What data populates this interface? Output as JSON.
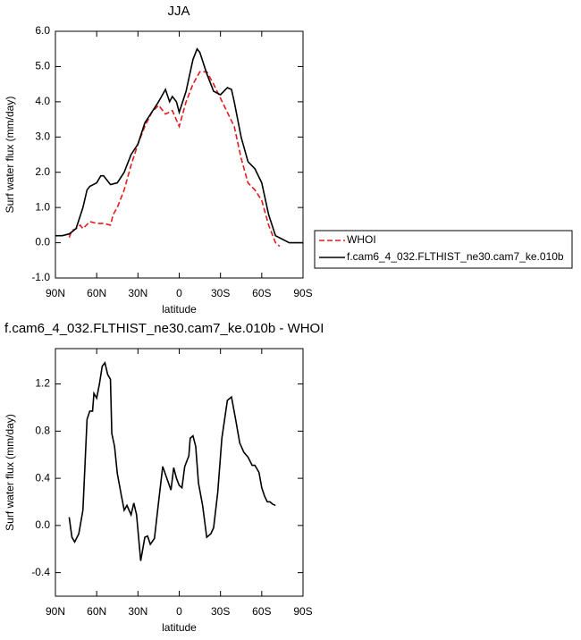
{
  "chart_data": [
    {
      "type": "line",
      "title": "JJA",
      "xlabel": "latitude",
      "ylabel": "Surf water flux (mm/day)",
      "xlim": [
        90,
        -90
      ],
      "xticks": [
        {
          "value": 90,
          "label": "90N"
        },
        {
          "value": 60,
          "label": "60N"
        },
        {
          "value": 30,
          "label": "30N"
        },
        0,
        {
          "value": -30,
          "label": "30S"
        },
        {
          "value": -60,
          "label": "60S"
        },
        {
          "value": -90,
          "label": "90S"
        }
      ],
      "ylim": [
        -1,
        6
      ],
      "yticks": [
        {
          "value": -1,
          "label": "-1.0"
        },
        {
          "value": 0,
          "label": "0.0"
        },
        {
          "value": 1,
          "label": "1.0"
        },
        {
          "value": 2,
          "label": "2.0"
        },
        {
          "value": 3,
          "label": "3.0"
        },
        {
          "value": 4,
          "label": "4.0"
        },
        {
          "value": 5,
          "label": "5.0"
        },
        {
          "value": 6,
          "label": "6.0"
        }
      ],
      "legend": "right",
      "series": [
        {
          "name": "WHOI",
          "color": "#e41a1c",
          "style": "dashed",
          "x": [
            80,
            78,
            75,
            72,
            70,
            65,
            60,
            55,
            50,
            48,
            45,
            40,
            35,
            30,
            25,
            20,
            15,
            10,
            5,
            0,
            -5,
            -10,
            -15,
            -20,
            -25,
            -30,
            -35,
            -40,
            -45,
            -50,
            -55,
            -60,
            -65,
            -70,
            -73
          ],
          "values": [
            0.15,
            0.35,
            0.4,
            0.5,
            0.4,
            0.6,
            0.55,
            0.55,
            0.5,
            0.8,
            1.0,
            1.5,
            2.2,
            2.8,
            3.3,
            3.7,
            3.9,
            3.65,
            3.75,
            3.3,
            4.0,
            4.5,
            4.85,
            4.85,
            4.5,
            4.1,
            3.7,
            3.3,
            2.4,
            1.7,
            1.5,
            1.2,
            0.5,
            0.0,
            -0.1
          ]
        },
        {
          "name": "f.cam6_4_032.FLTHIST_ne30.cam7_ke.010b",
          "color": "#000000",
          "style": "solid",
          "x": [
            90,
            85,
            80,
            75,
            70,
            67,
            65,
            60,
            57,
            55,
            50,
            45,
            40,
            35,
            30,
            25,
            20,
            15,
            10,
            7,
            5,
            2,
            0,
            -5,
            -10,
            -13,
            -15,
            -20,
            -25,
            -30,
            -35,
            -38,
            -40,
            -45,
            -50,
            -55,
            -60,
            -65,
            -70,
            -75,
            -80,
            -85,
            -90
          ],
          "values": [
            0.2,
            0.2,
            0.25,
            0.4,
            1.0,
            1.5,
            1.6,
            1.7,
            1.9,
            1.9,
            1.65,
            1.7,
            2.0,
            2.5,
            2.8,
            3.4,
            3.7,
            4.0,
            4.35,
            4.0,
            4.15,
            4.0,
            3.7,
            4.3,
            5.2,
            5.5,
            5.4,
            4.8,
            4.3,
            4.2,
            4.4,
            4.35,
            4.0,
            3.0,
            2.3,
            2.1,
            1.7,
            0.8,
            0.2,
            0.1,
            0.0,
            0.0,
            0.0
          ]
        }
      ]
    },
    {
      "type": "line",
      "title": "f.cam6_4_032.FLTHIST_ne30.cam7_ke.010b - WHOI",
      "xlabel": "latitude",
      "ylabel": "Surf water flux (mm/day)",
      "xlim": [
        90,
        -90
      ],
      "xticks": [
        {
          "value": 90,
          "label": "90N"
        },
        {
          "value": 60,
          "label": "60N"
        },
        {
          "value": 30,
          "label": "30N"
        },
        0,
        {
          "value": -30,
          "label": "30S"
        },
        {
          "value": -60,
          "label": "60S"
        },
        {
          "value": -90,
          "label": "90S"
        }
      ],
      "ylim": [
        -0.6,
        1.5
      ],
      "yticks": [
        -0.4,
        {
          "value": 0,
          "label": "0.0"
        },
        0.4,
        0.8,
        1.2
      ],
      "color": "#000000",
      "x": [
        80,
        78,
        76,
        73,
        70,
        67,
        65,
        63,
        62,
        60,
        58,
        56,
        54,
        52,
        50,
        49,
        47,
        45,
        42,
        40,
        38,
        35,
        33,
        31,
        28,
        25,
        23,
        21,
        18,
        15,
        12,
        9,
        6,
        4,
        2,
        0,
        -2,
        -4,
        -7,
        -8,
        -10,
        -12,
        -14,
        -17,
        -20,
        -23,
        -25,
        -28,
        -31,
        -35,
        -38,
        -41,
        -44,
        -47,
        -50,
        -53,
        -55,
        -58,
        -60,
        -62,
        -64,
        -66,
        -68,
        -70
      ],
      "values": [
        0.07,
        -0.1,
        -0.14,
        -0.07,
        0.13,
        0.9,
        0.97,
        0.97,
        1.12,
        1.08,
        1.2,
        1.35,
        1.38,
        1.28,
        1.24,
        0.78,
        0.67,
        0.44,
        0.25,
        0.13,
        0.17,
        0.09,
        0.19,
        0.09,
        -0.3,
        -0.1,
        -0.09,
        -0.16,
        -0.11,
        0.2,
        0.5,
        0.4,
        0.3,
        0.49,
        0.4,
        0.34,
        0.32,
        0.5,
        0.59,
        0.74,
        0.76,
        0.67,
        0.36,
        0.17,
        -0.1,
        -0.07,
        -0.02,
        0.28,
        0.74,
        1.06,
        1.09,
        0.9,
        0.7,
        0.62,
        0.58,
        0.51,
        0.51,
        0.45,
        0.32,
        0.25,
        0.2,
        0.2,
        0.18,
        0.17
      ]
    }
  ]
}
